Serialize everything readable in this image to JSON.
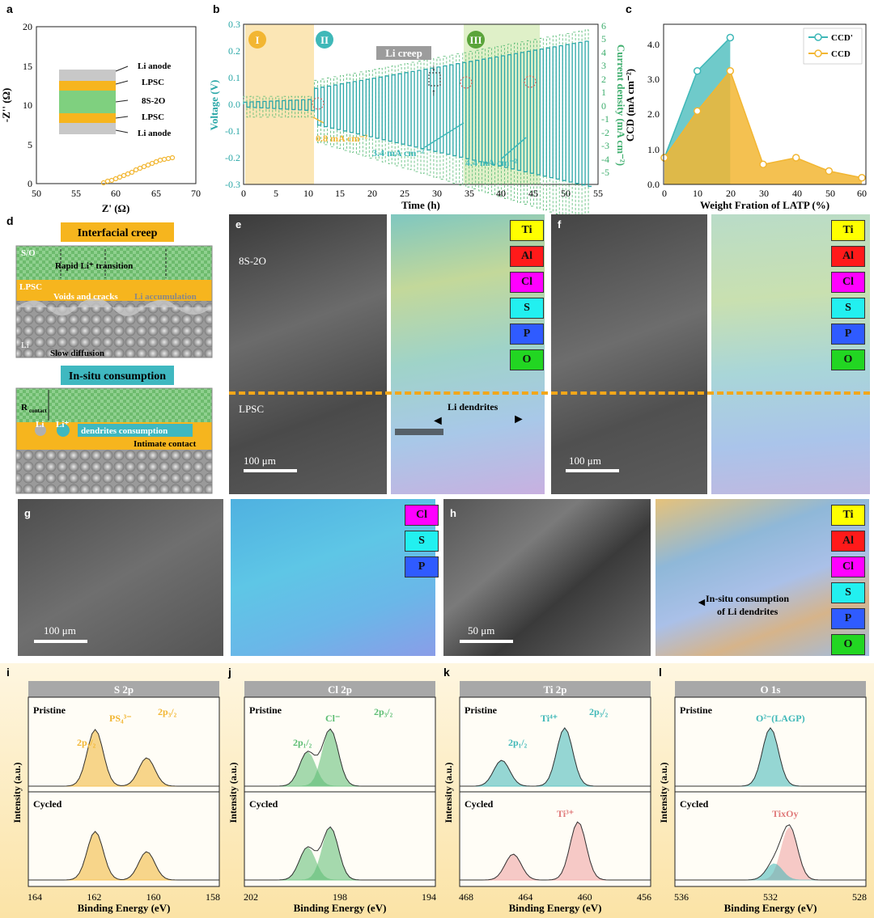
{
  "panel_labels": {
    "a": "a",
    "b": "b",
    "c": "c",
    "d": "d",
    "e": "e",
    "f": "f",
    "g": "g",
    "h": "h",
    "i": "i",
    "j": "j",
    "k": "k",
    "l": "l"
  },
  "panel_a": {
    "ylabel": "-Z'' (Ω)",
    "xlabel": "Z' (Ω)",
    "x_ticks": [
      "50",
      "55",
      "60",
      "65",
      "70"
    ],
    "y_ticks": [
      "0",
      "5",
      "10",
      "15",
      "20"
    ],
    "layers": [
      "Li anode",
      "LPSC",
      "8S-2O",
      "LPSC",
      "Li anode"
    ]
  },
  "panel_b": {
    "xlabel": "Time (h)",
    "ylabel_left": "Voltage (V)",
    "ylabel_right": "Current density (mA cm⁻²)",
    "x_ticks": [
      "0",
      "5",
      "10",
      "15",
      "20",
      "25",
      "30",
      "35",
      "40",
      "45",
      "50",
      "55"
    ],
    "y_ticks_left": [
      "-0.3",
      "-0.2",
      "-0.1",
      "0.0",
      "0.1",
      "0.2",
      "0.3"
    ],
    "y_ticks_right": [
      "-5",
      "-4",
      "-3",
      "-2",
      "-1",
      "0",
      "1",
      "2",
      "3",
      "4",
      "5",
      "6"
    ],
    "stage1": "I",
    "stage2": "II",
    "stage3": "III",
    "creep_label": "Li creep",
    "ann1": "0.8 mA cm⁻²",
    "ann2": "3.4 mA cm⁻²",
    "ann3": "4.4 mA cm⁻²"
  },
  "chart_data": {
    "type": "area",
    "xlabel": "Weight Fration of LATP (%)",
    "ylabel": "CCD (mA cm⁻²)",
    "x": [
      0,
      10,
      20,
      30,
      40,
      50,
      60
    ],
    "ylim": [
      0,
      4.8
    ],
    "x_ticks": [
      "0",
      "10",
      "20",
      "30",
      "40",
      "50",
      "60"
    ],
    "y_ticks": [
      "0.0",
      "1.0",
      "2.0",
      "3.0",
      "4.0"
    ],
    "series": [
      {
        "name": "CCD'",
        "values": [
          0.8,
          3.4,
          4.4,
          null,
          null,
          null,
          null
        ],
        "color": "#3fb8b8"
      },
      {
        "name": "CCD",
        "values": [
          0.8,
          2.2,
          3.4,
          0.6,
          0.8,
          0.4,
          0.2
        ],
        "color": "#f2b632"
      }
    ],
    "legend": "top-right"
  },
  "panel_d": {
    "title1": "Interfacial creep",
    "title2": "In-situ consumption",
    "so": "S/O",
    "lpsc1": "LPSC",
    "rapid": "Rapid Li⁺ transition",
    "voids": "Voids and cracks",
    "accum": "Li accumulation",
    "li": "Li",
    "slow": "Slow diffusion",
    "rcontact": "R",
    "rsub": "contact",
    "li_atom": "Li",
    "li_ion": "Li⁺",
    "dendr": "dendrites consumption",
    "contact": "Intimate contact"
  },
  "panel_e": {
    "top": "8S-2O",
    "bottom": "LPSC",
    "scale": "100 μm",
    "dendrites": "Li dendrites"
  },
  "panel_f": {
    "scale": "100 μm"
  },
  "panel_g": {
    "scale": "100 μm"
  },
  "panel_h": {
    "scale": "50 μm",
    "note1": "In-situ consumption",
    "note2": "of Li dendrites"
  },
  "eds_legend": [
    {
      "el": "Ti",
      "color": "#ffff00"
    },
    {
      "el": "Al",
      "color": "#ff1a1a"
    },
    {
      "el": "Cl",
      "color": "#ff00ff"
    },
    {
      "el": "S",
      "color": "#22f0f0"
    },
    {
      "el": "P",
      "color": "#2f5bff"
    },
    {
      "el": "O",
      "color": "#22d622"
    }
  ],
  "xps": {
    "intensity": "Intensity (a.u.)",
    "be": "Binding Energy (eV)",
    "pristine": "Pristine",
    "cycled": "Cycled",
    "i": {
      "title": "S 2p",
      "ticks": [
        "164",
        "162",
        "160",
        "158"
      ],
      "species": "PS₄³⁻",
      "p12": "2p₁/₂",
      "p32": "2p₃/₂"
    },
    "j": {
      "title": "Cl 2p",
      "ticks": [
        "202",
        "198",
        "194"
      ],
      "species": "Cl⁻",
      "p12": "2p₁/₂",
      "p32": "2p₃/₂"
    },
    "k": {
      "title": "Ti 2p",
      "ticks": [
        "468",
        "464",
        "460",
        "456"
      ],
      "species": "Ti⁴⁺",
      "species2": "Ti³⁺",
      "p12": "2p₁/₂",
      "p32": "2p₃/₂"
    },
    "l": {
      "title": "O 1s",
      "ticks": [
        "536",
        "532",
        "528"
      ],
      "species": "O²⁻(LAGP)",
      "species2": "TixOy"
    }
  }
}
